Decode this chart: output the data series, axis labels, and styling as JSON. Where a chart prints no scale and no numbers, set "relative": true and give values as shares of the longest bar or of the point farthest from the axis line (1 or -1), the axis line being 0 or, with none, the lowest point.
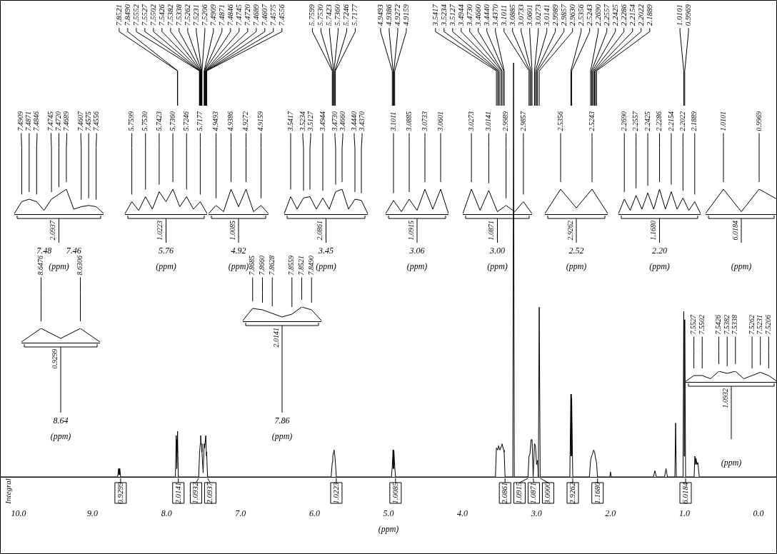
{
  "chart_data": [
    {
      "type": "line",
      "relative": true,
      "xlabel": "(ppm)",
      "tick_labels": "x",
      "xlim": [
        10.25,
        -0.25
      ],
      "xticks": [
        {
          "value": 10,
          "label": "10.0"
        },
        {
          "value": 9,
          "label": "9.0"
        },
        {
          "value": 8,
          "label": "8.0"
        },
        {
          "value": 7,
          "label": "7.0"
        },
        {
          "value": 6,
          "label": "6.0"
        },
        {
          "value": 5,
          "label": "5.0"
        },
        {
          "value": 4,
          "label": "4.0"
        },
        {
          "value": 3,
          "label": "3.0"
        },
        {
          "value": 2,
          "label": "2.0"
        },
        {
          "value": 1,
          "label": "1.0"
        },
        {
          "value": 0,
          "label": "0.0"
        }
      ],
      "series": [
        {
          "color": "#000000",
          "x": [
            10.25,
            8.66,
            8.6476,
            8.639,
            8.6306,
            8.62,
            7.88,
            7.8685,
            7.866,
            7.8628,
            7.859,
            7.8559,
            7.8521,
            7.849,
            7.84,
            7.565,
            7.5527,
            7.5426,
            7.5382,
            7.5338,
            7.5262,
            7.5206,
            7.505,
            7.4909,
            7.4846,
            7.4745,
            7.4689,
            7.4607,
            7.4575,
            7.445,
            5.775,
            5.7599,
            5.753,
            5.7423,
            5.736,
            5.7246,
            5.7177,
            5.705,
            4.96,
            4.9493,
            4.9386,
            4.933,
            4.9272,
            4.9159,
            4.905,
            3.555,
            3.5417,
            3.5234,
            3.5127,
            3.4944,
            3.473,
            3.466,
            3.444,
            3.437,
            3.425,
            3.32,
            3.31,
            3.3,
            3.115,
            3.1011,
            3.0885,
            3.0733,
            3.0601,
            3.045,
            3.0273,
            3.0141,
            2.9989,
            2.9857,
            2.975,
            2.963,
            2.95,
            2.55,
            2.5356,
            2.53,
            2.5243,
            2.51,
            2.285,
            2.269,
            2.2557,
            2.2425,
            2.2286,
            2.2154,
            2.2022,
            2.1889,
            2.175,
            2.01,
            2.0,
            1.99,
            1.42,
            1.4,
            1.38,
            1.27,
            1.25,
            1.23,
            1.13,
            1.12,
            1.11,
            1.02,
            1.0101,
            1.0035,
            0.9969,
            0.985,
            0.87,
            0.86,
            0.85,
            0.845,
            0.83,
            0.82,
            0.8,
            -0.25
          ],
          "values": [
            0,
            0,
            0.02,
            0.005,
            0.02,
            0,
            0,
            0.1,
            0.09,
            0.06,
            0.02,
            0.06,
            0.11,
            0.09,
            0,
            0,
            0.06,
            0.08,
            0.1,
            0.08,
            0.08,
            0.06,
            0.01,
            0.08,
            0.07,
            0.09,
            0.1,
            0.05,
            0.06,
            0,
            0,
            0.035,
            0.05,
            0.06,
            0.065,
            0.05,
            0.035,
            0,
            0,
            0.025,
            0.065,
            0.02,
            0.065,
            0.025,
            0,
            0,
            0.07,
            0.065,
            0.075,
            0.065,
            0.075,
            0.08,
            0.065,
            0.06,
            0,
            0,
            1,
            0,
            0,
            0.05,
            0.055,
            0.09,
            0.09,
            0,
            0.08,
            0.075,
            0.03,
            0.04,
            0,
            0.41,
            0,
            0,
            0.2,
            0.05,
            0.19,
            0,
            0,
            0.04,
            0.05,
            0.055,
            0.065,
            0.06,
            0.045,
            0.035,
            0,
            0,
            0.012,
            0,
            0,
            0.015,
            0,
            0,
            0.02,
            0,
            0,
            0.13,
            0,
            0,
            0.4,
            0.05,
            0.38,
            0,
            0,
            0.05,
            0.03,
            0.045,
            0.03,
            0.035,
            0,
            0
          ]
        }
      ],
      "annotations": [
        "Integral",
        {
          "text": "7.8521",
          "x": 7.8521
        },
        {
          "text": "7.8490",
          "x": 7.849
        },
        {
          "text": "7.5552",
          "x": 7.5552
        },
        {
          "text": "7.5527",
          "x": 7.5527
        },
        {
          "text": "7.5502",
          "x": 7.5502
        },
        {
          "text": "7.5426",
          "x": 7.5426
        },
        {
          "text": "7.5382",
          "x": 7.5382
        },
        {
          "text": "7.5338",
          "x": 7.5338
        },
        {
          "text": "7.5262",
          "x": 7.5262
        },
        {
          "text": "7.5231",
          "x": 7.5231
        },
        {
          "text": "7.5206",
          "x": 7.5206
        },
        {
          "text": "7.4909",
          "x": 7.4909
        },
        {
          "text": "7.4871",
          "x": 7.4871
        },
        {
          "text": "7.4846",
          "x": 7.4846
        },
        {
          "text": "7.4745",
          "x": 7.4745
        },
        {
          "text": "7.4720",
          "x": 7.472
        },
        {
          "text": "7.4689",
          "x": 7.4689
        },
        {
          "text": "7.4607",
          "x": 7.4607
        },
        {
          "text": "7.4575",
          "x": 7.4575
        },
        {
          "text": "7.4556",
          "x": 7.4556
        },
        {
          "text": "5.7599",
          "x": 5.7599
        },
        {
          "text": "5.7530",
          "x": 5.753
        },
        {
          "text": "5.7423",
          "x": 5.7423
        },
        {
          "text": "5.7360",
          "x": 5.736
        },
        {
          "text": "5.7246",
          "x": 5.7246
        },
        {
          "text": "5.7177",
          "x": 5.7177
        },
        {
          "text": "4.9493",
          "x": 4.9493
        },
        {
          "text": "4.9386",
          "x": 4.9386
        },
        {
          "text": "4.9272",
          "x": 4.9272
        },
        {
          "text": "4.9159",
          "x": 4.9159
        },
        {
          "text": "3.5417",
          "x": 3.5417
        },
        {
          "text": "3.5234",
          "x": 3.5234
        },
        {
          "text": "3.5127",
          "x": 3.5127
        },
        {
          "text": "3.4944",
          "x": 3.4944
        },
        {
          "text": "3.4730",
          "x": 3.473
        },
        {
          "text": "3.4660",
          "x": 3.466
        },
        {
          "text": "3.4440",
          "x": 3.444
        },
        {
          "text": "3.4370",
          "x": 3.437
        },
        {
          "text": "3.1011",
          "x": 3.1011
        },
        {
          "text": "3.0885",
          "x": 3.0885
        },
        {
          "text": "3.0733",
          "x": 3.0733
        },
        {
          "text": "3.0601",
          "x": 3.0601
        },
        {
          "text": "3.0273",
          "x": 3.0273
        },
        {
          "text": "3.0141",
          "x": 3.0141
        },
        {
          "text": "2.9989",
          "x": 2.9989
        },
        {
          "text": "2.9857",
          "x": 2.9857
        },
        {
          "text": "2.9630",
          "x": 2.963
        },
        {
          "text": "2.5356",
          "x": 2.5356
        },
        {
          "text": "2.5243",
          "x": 2.5243
        },
        {
          "text": "2.2690",
          "x": 2.269
        },
        {
          "text": "2.2557",
          "x": 2.2557
        },
        {
          "text": "2.2425",
          "x": 2.2425
        },
        {
          "text": "2.2286",
          "x": 2.2286
        },
        {
          "text": "2.2154",
          "x": 2.2154
        },
        {
          "text": "2.2022",
          "x": 2.2022
        },
        {
          "text": "2.1889",
          "x": 2.1889
        },
        {
          "text": "1.0101",
          "x": 1.0101
        },
        {
          "text": "0.9969",
          "x": 0.9969
        },
        {
          "text": "0.9299",
          "x": 8.62,
          "y": 0
        },
        {
          "text": "2.0141",
          "x": 7.84,
          "y": 0
        },
        {
          "text": "1.0932",
          "x": 7.565,
          "y": 0
        },
        {
          "text": "2.0937",
          "x": 7.445,
          "y": 0
        },
        {
          "text": "1.0223",
          "x": 5.705,
          "y": 0
        },
        {
          "text": "1.0085",
          "x": 4.905,
          "y": 0
        },
        {
          "text": "2.0861",
          "x": 3.425,
          "y": 0
        },
        {
          "text": "1.0915",
          "x": 3.115,
          "y": 0
        },
        {
          "text": "1.0871",
          "x": 3.045,
          "y": 0
        },
        {
          "text": "3.0000",
          "x": 2.95,
          "y": 0
        },
        {
          "text": "2.9262",
          "x": 2.51,
          "y": 0
        },
        {
          "text": "1.1680",
          "x": 2.175,
          "y": 0
        },
        {
          "text": "6.0184",
          "x": 0.985,
          "y": 0
        }
      ]
    },
    {
      "type": "line",
      "relative": true,
      "xlabel": "(ppm)",
      "categories": [
        null,
        "7.4909",
        "7.4871",
        "7.4846",
        null,
        "7.4745",
        "7.4720",
        "7.4689",
        null,
        "7.4607",
        "7.4575",
        "7.4556",
        null
      ],
      "series": [
        {
          "color": "#000000",
          "values": [
            0.02,
            0.5,
            0.6,
            0.5,
            0.15,
            0.6,
            0.8,
            1,
            0.2,
            0.3,
            0.35,
            0.3,
            0.03
          ]
        }
      ],
      "annotations": [
        "2.0937",
        "7.48",
        "7.46"
      ]
    },
    {
      "type": "line",
      "relative": true,
      "xlabel": "(ppm)",
      "categories": [
        null,
        "5.7599",
        null,
        "5.7530",
        null,
        "5.7423",
        null,
        "5.7360",
        null,
        "5.7246",
        null,
        "5.7177",
        null
      ],
      "series": [
        {
          "color": "#000000",
          "values": [
            0.02,
            0.5,
            0.15,
            0.7,
            0.2,
            0.9,
            0.5,
            1,
            0.3,
            0.7,
            0.2,
            0.5,
            0.02
          ]
        }
      ],
      "annotations": [
        "1.0223",
        "5.76"
      ]
    },
    {
      "type": "line",
      "relative": true,
      "xlabel": "(ppm)",
      "categories": [
        null,
        "4.9493",
        null,
        "4.9386",
        null,
        "4.9272",
        null,
        "4.9159",
        null
      ],
      "series": [
        {
          "color": "#000000",
          "values": [
            0.02,
            0.35,
            0.1,
            1,
            0.3,
            1,
            0.1,
            0.35,
            0.02
          ]
        }
      ],
      "annotations": [
        "1.0085",
        "4.92"
      ]
    },
    {
      "type": "line",
      "relative": true,
      "xlabel": "(ppm)",
      "categories": [
        null,
        "3.5417",
        null,
        "3.5234",
        "3.5127",
        null,
        "3.4944",
        null,
        "3.4730",
        "3.4660",
        null,
        "3.4440",
        "3.4370",
        null
      ],
      "series": [
        {
          "color": "#000000",
          "values": [
            0.02,
            0.7,
            0.2,
            0.65,
            0.7,
            0.2,
            0.65,
            0.2,
            0.9,
            1,
            0.2,
            0.6,
            0.55,
            0.02
          ]
        }
      ],
      "annotations": [
        "2.0861",
        "3.45"
      ]
    },
    {
      "type": "line",
      "relative": true,
      "xlabel": "(ppm)",
      "categories": [
        null,
        "3.1011",
        null,
        "3.0885",
        null,
        "3.0733",
        null,
        "3.0601",
        null
      ],
      "series": [
        {
          "color": "#000000",
          "values": [
            0.02,
            0.55,
            0.1,
            0.6,
            0.15,
            1,
            0.2,
            1,
            0.02
          ]
        }
      ],
      "annotations": [
        "1.0915",
        "3.06"
      ]
    },
    {
      "type": "line",
      "relative": true,
      "xlabel": "(ppm)",
      "categories": [
        null,
        "3.0273",
        null,
        "3.0141",
        null,
        "2.9989",
        null,
        "2.9857",
        null
      ],
      "series": [
        {
          "color": "#000000",
          "values": [
            0.02,
            1,
            0.15,
            0.95,
            0.1,
            0.35,
            0.1,
            0.5,
            0.02
          ]
        }
      ],
      "annotations": [
        "1.0871",
        "3.00"
      ]
    },
    {
      "type": "line",
      "relative": true,
      "xlabel": "(ppm)",
      "categories": [
        null,
        "2.5356",
        null,
        "2.5243",
        null
      ],
      "series": [
        {
          "color": "#000000",
          "values": [
            0.03,
            1,
            0.25,
            1,
            0.03
          ]
        }
      ],
      "annotations": [
        "2.9262",
        "2.52"
      ]
    },
    {
      "type": "line",
      "relative": true,
      "xlabel": "(ppm)",
      "categories": [
        null,
        "2.2690",
        null,
        "2.2557",
        null,
        "2.2425",
        null,
        "2.2286",
        null,
        "2.2154",
        null,
        "2.2022",
        null,
        "2.1889",
        null
      ],
      "series": [
        {
          "color": "#000000",
          "values": [
            0.02,
            0.6,
            0.15,
            0.75,
            0.2,
            0.85,
            0.2,
            1,
            0.2,
            0.9,
            0.2,
            0.65,
            0.15,
            0.5,
            0.02
          ]
        }
      ],
      "annotations": [
        "1.1680",
        "2.20"
      ]
    },
    {
      "type": "line",
      "relative": true,
      "xlabel": "(ppm)",
      "categories": [
        null,
        "1.0101",
        null,
        "0.9969",
        null
      ],
      "series": [
        {
          "color": "#000000",
          "values": [
            0.03,
            1,
            0.1,
            1,
            0.6
          ]
        }
      ],
      "annotations": [
        "6.0184"
      ]
    },
    {
      "type": "line",
      "relative": true,
      "xlabel": "(ppm)",
      "categories": [
        null,
        "8.6476",
        null,
        "8.6306",
        null
      ],
      "series": [
        {
          "color": "#000000",
          "values": [
            0.05,
            1,
            0.3,
            1,
            0.05
          ]
        }
      ],
      "annotations": [
        "0.9299",
        "8.64"
      ]
    },
    {
      "type": "line",
      "relative": true,
      "xlabel": "(ppm)",
      "categories": [
        null,
        "7.8685",
        "7.8660",
        "7.8628",
        null,
        "7.8559",
        "7.8521",
        "7.8490",
        null
      ],
      "series": [
        {
          "color": "#000000",
          "values": [
            0.05,
            0.9,
            0.8,
            0.55,
            0.3,
            0.5,
            1,
            0.8,
            0.05
          ]
        }
      ],
      "annotations": [
        "2.0141",
        "7.86"
      ]
    },
    {
      "type": "line",
      "relative": true,
      "xlabel": "(ppm)",
      "categories": [
        null,
        "7.5527",
        "7.5502",
        null,
        "7.5426",
        "7.5382",
        "7.5338",
        null,
        "7.5262",
        "7.5231",
        "7.5206",
        null
      ],
      "series": [
        {
          "color": "#000000",
          "values": [
            0.05,
            0.6,
            0.6,
            0.3,
            1,
            0.8,
            1,
            0.3,
            0.6,
            0.9,
            0.6,
            0.05
          ]
        }
      ],
      "annotations": [
        "1.0932"
      ]
    }
  ]
}
